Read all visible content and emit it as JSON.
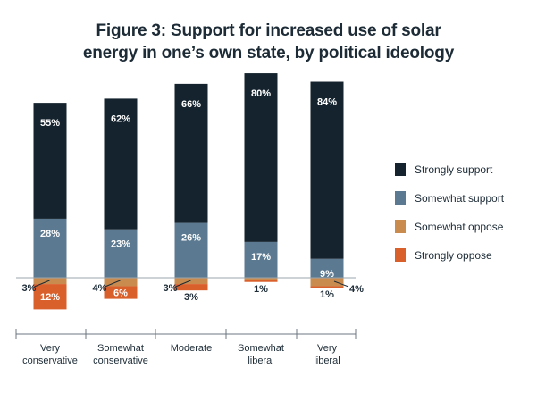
{
  "chart_data": {
    "type": "bar",
    "stacked": "diverging",
    "title": [
      "Figure 3: Support for increased use of solar",
      "energy in one’s own state, by political ideology"
    ],
    "categories": [
      [
        "Very",
        "conservative"
      ],
      [
        "Somewhat",
        "conservative"
      ],
      [
        "Moderate"
      ],
      [
        "Somewhat",
        "liberal"
      ],
      [
        "Very",
        "liberal"
      ]
    ],
    "series": [
      {
        "name": "Strongly support",
        "color": "#14232e",
        "direction": "up",
        "values": [
          55,
          62,
          66,
          80,
          84
        ]
      },
      {
        "name": "Somewhat support",
        "color": "#5b7a91",
        "direction": "up",
        "values": [
          28,
          23,
          26,
          17,
          9
        ]
      },
      {
        "name": "Somewhat oppose",
        "color": "#c98b4e",
        "direction": "down",
        "values": [
          3,
          4,
          3,
          1,
          4
        ]
      },
      {
        "name": "Strongly oppose",
        "color": "#d95f2b",
        "direction": "down",
        "values": [
          12,
          6,
          3,
          1,
          1
        ]
      }
    ],
    "legend_position": "right",
    "grid": false
  }
}
